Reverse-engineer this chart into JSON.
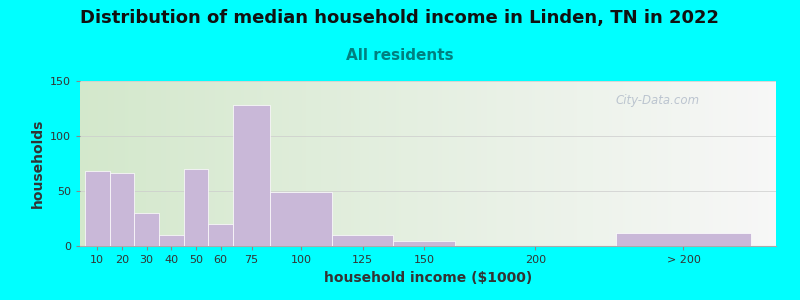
{
  "title": "Distribution of median household income in Linden, TN in 2022",
  "subtitle": "All residents",
  "xlabel": "household income ($1000)",
  "ylabel": "households",
  "bar_color": "#c9b8d8",
  "background_outer": "#00ffff",
  "background_plot_left": "#d8e8d0",
  "background_plot_right": "#f8f8f8",
  "ylim": [
    0,
    150
  ],
  "yticks": [
    0,
    50,
    100,
    150
  ],
  "categories": [
    "10",
    "20",
    "30",
    "40",
    "50",
    "60",
    "75",
    "100",
    "125",
    "150",
    "200",
    "> 200"
  ],
  "values": [
    68,
    66,
    30,
    10,
    70,
    20,
    128,
    49,
    10,
    5,
    0,
    12
  ],
  "bar_left_edges": [
    0,
    10,
    20,
    30,
    40,
    50,
    60,
    75,
    100,
    125,
    175,
    215
  ],
  "bar_widths": [
    10,
    10,
    10,
    10,
    10,
    10,
    15,
    25,
    25,
    25,
    15,
    55
  ],
  "xtick_positions": [
    5,
    15,
    25,
    35,
    45,
    55,
    67.5,
    87.5,
    112.5,
    137.5,
    182.5,
    242.5
  ],
  "xlim": [
    -2,
    280
  ],
  "title_fontsize": 13,
  "subtitle_fontsize": 11,
  "subtitle_color": "#008080",
  "axis_label_fontsize": 10,
  "tick_fontsize": 8,
  "watermark": "City-Data.com"
}
